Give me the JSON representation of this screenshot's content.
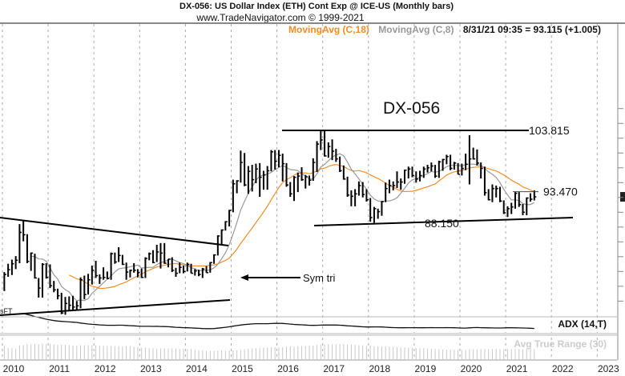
{
  "header": {
    "title": "DX-056:  US Dollar Index (ETH) Cont Exp @ ICE-US  (Monthly bars)",
    "source": "www.TradeNavigator.com © 1999-2021"
  },
  "legend": {
    "ma_long": "MovingAvg (C,18)",
    "ma_short": "MovingAvg (C,8)",
    "last_quote": "8/31/21 09:35 = 93.115 (+1.005)"
  },
  "colors": {
    "bars": "#000000",
    "ma_long": "#f28c28",
    "ma_short": "#999999",
    "grid": "#aaaaaa",
    "atr": "#c8c8c8"
  },
  "annotations": {
    "symbol": "DX-056",
    "resistance_label": "103.815",
    "support_label": "88.150",
    "current_label": "93.470",
    "pattern_label": "Sym tri",
    "corner_text": "sFT"
  },
  "indicators": {
    "adx_label": "ADX (14,T)",
    "atr_label": "Avg True Range (30)"
  },
  "chart_data": {
    "type": "ohlc-bar",
    "title": "DX-056:  US Dollar Index (ETH) Cont Exp @ ICE-US  (Monthly bars)",
    "bar_format": [
      "high",
      "low",
      "close"
    ],
    "moving_averages": [
      {
        "name": "MovingAvg (C,18)",
        "period": 18,
        "color": "#f28c28"
      },
      {
        "name": "MovingAvg (C,8)",
        "period": 8,
        "color": "#999999"
      }
    ],
    "x_tick_labels": [
      "2010",
      "2011",
      "2012",
      "2013",
      "2014",
      "2015",
      "2016",
      "2017",
      "2018",
      "2019",
      "2020",
      "2021",
      "2022",
      "2023"
    ],
    "grid": true,
    "levels": {
      "resistance": 103.815,
      "support": 88.15,
      "current": 93.47
    },
    "monthly_bars": {
      "2010": [
        [
          79.9,
          76.7,
          79.5
        ],
        [
          81.3,
          79.1,
          80.3
        ],
        [
          82.0,
          79.4,
          81.3
        ],
        [
          82.6,
          80.4,
          81.9
        ],
        [
          88.0,
          81.4,
          86.6
        ],
        [
          88.7,
          85.1,
          86.2
        ],
        [
          86.3,
          81.4,
          81.7
        ],
        [
          83.2,
          80.1,
          83.1
        ],
        [
          83.0,
          78.8,
          78.9
        ],
        [
          78.9,
          75.6,
          77.2
        ],
        [
          81.4,
          75.6,
          81.2
        ],
        [
          81.4,
          78.8,
          79.0
        ]
      ],
      "2011": [
        [
          81.2,
          77.2,
          77.6
        ],
        [
          78.4,
          76.5,
          76.9
        ],
        [
          77.1,
          75.3,
          75.9
        ],
        [
          76.4,
          72.8,
          73.0
        ],
        [
          75.7,
          72.7,
          74.6
        ],
        [
          75.8,
          73.5,
          74.3
        ],
        [
          75.9,
          73.4,
          74.0
        ],
        [
          75.0,
          73.4,
          74.2
        ],
        [
          79.0,
          73.8,
          78.6
        ],
        [
          79.3,
          75.3,
          76.1
        ],
        [
          79.6,
          76.1,
          78.6
        ],
        [
          81.0,
          77.8,
          80.2
        ]
      ],
      "2012": [
        [
          81.8,
          78.9,
          79.3
        ],
        [
          79.5,
          77.9,
          78.9
        ],
        [
          80.7,
          78.6,
          79.0
        ],
        [
          80.0,
          78.7,
          78.8
        ],
        [
          83.2,
          78.6,
          83.0
        ],
        [
          83.2,
          81.3,
          81.6
        ],
        [
          84.1,
          81.6,
          82.7
        ],
        [
          82.8,
          81.1,
          81.2
        ],
        [
          81.5,
          78.6,
          79.9
        ],
        [
          80.3,
          79.0,
          80.2
        ],
        [
          81.4,
          79.8,
          80.2
        ],
        [
          80.4,
          79.0,
          79.8
        ]
      ],
      "2013": [
        [
          80.5,
          78.9,
          79.0
        ],
        [
          82.4,
          78.9,
          82.2
        ],
        [
          83.2,
          81.9,
          83.0
        ],
        [
          83.6,
          81.4,
          81.5
        ],
        [
          84.5,
          81.6,
          83.3
        ],
        [
          84.8,
          80.5,
          83.1
        ],
        [
          84.8,
          81.3,
          81.4
        ],
        [
          82.1,
          80.7,
          82.1
        ],
        [
          82.4,
          79.9,
          80.2
        ],
        [
          80.6,
          79.1,
          79.7
        ],
        [
          81.5,
          79.7,
          80.7
        ],
        [
          81.0,
          79.7,
          80.0
        ]
      ],
      "2014": [
        [
          81.5,
          80.0,
          81.2
        ],
        [
          81.3,
          79.7,
          79.7
        ],
        [
          80.4,
          79.3,
          80.1
        ],
        [
          80.3,
          79.2,
          79.5
        ],
        [
          80.6,
          78.9,
          80.4
        ],
        [
          80.9,
          79.8,
          79.8
        ],
        [
          81.6,
          79.8,
          81.5
        ],
        [
          82.9,
          81.3,
          82.8
        ],
        [
          86.1,
          82.7,
          86.0
        ],
        [
          87.1,
          84.5,
          87.0
        ],
        [
          88.5,
          86.9,
          88.4
        ],
        [
          90.4,
          87.6,
          90.3
        ]
      ],
      "2015": [
        [
          95.5,
          90.0,
          94.8
        ],
        [
          95.4,
          93.2,
          95.3
        ],
        [
          100.4,
          95.0,
          98.4
        ],
        [
          100.0,
          94.4,
          94.6
        ],
        [
          97.8,
          93.1,
          96.9
        ],
        [
          98.0,
          93.5,
          95.5
        ],
        [
          98.2,
          94.9,
          97.3
        ],
        [
          98.3,
          92.6,
          95.9
        ],
        [
          97.0,
          93.8,
          96.3
        ],
        [
          97.8,
          93.8,
          97.0
        ],
        [
          100.5,
          96.9,
          100.2
        ],
        [
          100.5,
          97.2,
          98.6
        ]
      ],
      "2016": [
        [
          100.5,
          97.6,
          99.6
        ],
        [
          99.9,
          95.2,
          98.2
        ],
        [
          98.3,
          94.3,
          94.6
        ],
        [
          95.1,
          92.6,
          93.1
        ],
        [
          96.1,
          91.9,
          95.9
        ],
        [
          96.7,
          93.4,
          96.1
        ],
        [
          97.6,
          95.3,
          95.5
        ],
        [
          96.3,
          94.0,
          96.0
        ],
        [
          96.2,
          94.5,
          95.4
        ],
        [
          99.1,
          95.3,
          98.4
        ],
        [
          102.0,
          96.8,
          101.5
        ],
        [
          103.8,
          100.5,
          102.2
        ]
      ],
      "2017": [
        [
          103.8,
          99.4,
          99.5
        ],
        [
          101.8,
          99.2,
          101.1
        ],
        [
          102.3,
          98.8,
          100.3
        ],
        [
          100.7,
          98.5,
          99.0
        ],
        [
          99.4,
          96.8,
          97.0
        ],
        [
          97.9,
          95.5,
          95.6
        ],
        [
          96.0,
          92.6,
          92.9
        ],
        [
          93.7,
          91.0,
          92.7
        ],
        [
          93.9,
          91.0,
          93.1
        ],
        [
          95.2,
          92.8,
          94.5
        ],
        [
          95.1,
          92.5,
          93.0
        ],
        [
          93.9,
          91.8,
          92.1
        ]
      ],
      "2018": [
        [
          92.4,
          88.4,
          89.1
        ],
        [
          90.9,
          88.2,
          90.6
        ],
        [
          90.6,
          88.9,
          90.1
        ],
        [
          91.9,
          89.4,
          91.8
        ],
        [
          95.0,
          91.7,
          94.0
        ],
        [
          95.5,
          93.2,
          94.5
        ],
        [
          95.2,
          93.7,
          94.5
        ],
        [
          96.9,
          94.1,
          95.1
        ],
        [
          95.7,
          93.8,
          95.1
        ],
        [
          97.2,
          94.8,
          97.1
        ],
        [
          97.7,
          95.7,
          97.3
        ],
        [
          97.7,
          95.9,
          96.2
        ]
      ],
      "2019": [
        [
          96.9,
          95.0,
          95.6
        ],
        [
          97.0,
          95.2,
          96.2
        ],
        [
          97.7,
          95.8,
          97.3
        ],
        [
          98.0,
          96.7,
          97.5
        ],
        [
          98.4,
          96.9,
          97.8
        ],
        [
          98.0,
          95.8,
          96.1
        ],
        [
          98.7,
          95.8,
          98.5
        ],
        [
          99.0,
          97.0,
          98.9
        ],
        [
          99.7,
          98.1,
          99.4
        ],
        [
          99.7,
          97.1,
          97.4
        ],
        [
          98.5,
          97.2,
          98.3
        ],
        [
          98.3,
          96.4,
          96.4
        ]
      ],
      "2020": [
        [
          98.2,
          96.2,
          97.4
        ],
        [
          99.9,
          97.1,
          98.1
        ],
        [
          103.0,
          94.7,
          99.0
        ],
        [
          100.9,
          98.9,
          99.0
        ],
        [
          100.6,
          97.9,
          98.3
        ],
        [
          98.4,
          95.7,
          97.4
        ],
        [
          97.7,
          92.8,
          93.3
        ],
        [
          93.9,
          92.0,
          92.1
        ],
        [
          94.7,
          91.7,
          94.0
        ],
        [
          94.5,
          92.5,
          94.0
        ],
        [
          94.3,
          91.7,
          91.9
        ],
        [
          92.0,
          89.7,
          89.9
        ]
      ],
      "2021": [
        [
          91.0,
          89.2,
          90.6
        ],
        [
          91.6,
          89.7,
          90.9
        ],
        [
          93.4,
          90.6,
          93.2
        ],
        [
          93.4,
          90.9,
          91.3
        ],
        [
          91.4,
          89.5,
          90.0
        ],
        [
          92.5,
          89.5,
          92.4
        ],
        [
          93.2,
          91.8,
          92.2
        ],
        [
          93.7,
          92.0,
          92.6
        ]
      ]
    }
  }
}
